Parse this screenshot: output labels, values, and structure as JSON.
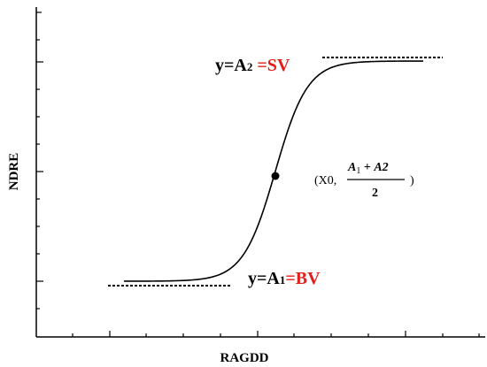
{
  "axes": {
    "x_label": "RAGDD",
    "y_label": "NDRE"
  },
  "annotations": {
    "upper": {
      "lhs": "y=A",
      "sub": "2",
      "mid": " =",
      "rhs": "SV",
      "rhs_color": "#e0201b"
    },
    "lower": {
      "lhs": "y=A",
      "sub": "1",
      "mid": "=",
      "rhs": "BV",
      "rhs_color": "#e0201b"
    },
    "inflection": {
      "open": "(X0, ",
      "numerator_a": "A",
      "numerator_a_sub": "1",
      "numerator_plus": " + ",
      "numerator_b": "A2",
      "denominator": "2",
      "close": ")"
    }
  },
  "curve": {
    "type": "sigmoid",
    "description_visible": false
  }
}
